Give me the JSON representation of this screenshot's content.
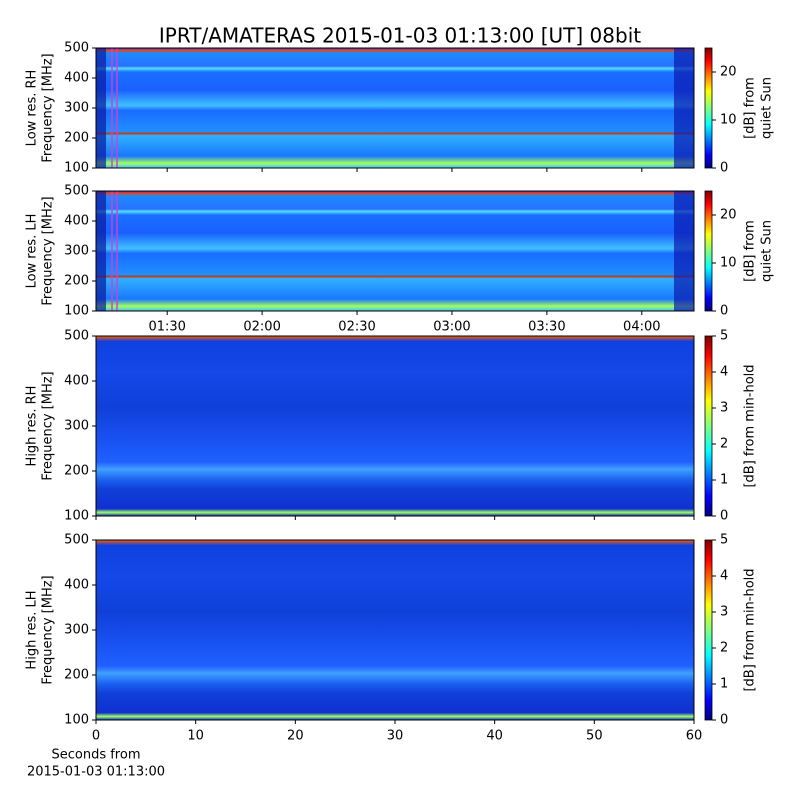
{
  "title": "IPRT/AMATERAS 2015-01-03 01:13:00 [UT]   08bit",
  "chart_data": [
    {
      "type": "heatmap",
      "ylabel": [
        "Low res. RH",
        "Frequency [MHz]"
      ],
      "ylim": [
        100,
        500
      ],
      "yticks": [
        100,
        200,
        300,
        400,
        500
      ],
      "xlim": [
        67.5,
        256.5
      ],
      "xticks": [
        90,
        120,
        150,
        180,
        210,
        240
      ],
      "xticklabels": false,
      "clim": [
        0,
        25
      ],
      "cticks": [
        0,
        10,
        20
      ],
      "clabel": [
        "[dB] from",
        "quiet Sun"
      ],
      "style": "low"
    },
    {
      "type": "heatmap",
      "ylabel": [
        "Low res. LH",
        "Frequency [MHz]"
      ],
      "ylim": [
        100,
        500
      ],
      "yticks": [
        100,
        200,
        300,
        400,
        500
      ],
      "xlim": [
        67.5,
        256.5
      ],
      "xticks": [
        {
          "value": 90,
          "label": "01:30"
        },
        {
          "value": 120,
          "label": "02:00"
        },
        {
          "value": 150,
          "label": "02:30"
        },
        {
          "value": 180,
          "label": "03:00"
        },
        {
          "value": 210,
          "label": "03:30"
        },
        {
          "value": 240,
          "label": "04:00"
        }
      ],
      "xticklabels": true,
      "clim": [
        0,
        25
      ],
      "cticks": [
        0,
        10,
        20
      ],
      "clabel": [
        "[dB] from",
        "quiet Sun"
      ],
      "style": "low"
    },
    {
      "type": "heatmap",
      "ylabel": [
        "High res. RH",
        "Frequency [MHz]"
      ],
      "ylim": [
        100,
        500
      ],
      "yticks": [
        100,
        200,
        300,
        400,
        500
      ],
      "xlim": [
        0,
        60
      ],
      "xticks": [
        0,
        10,
        20,
        30,
        40,
        50,
        60
      ],
      "xticklabels": false,
      "clim": [
        0,
        5
      ],
      "cticks": [
        0,
        1,
        2,
        3,
        4,
        5
      ],
      "clabel": [
        "[dB] from min-hold"
      ],
      "style": "high"
    },
    {
      "type": "heatmap",
      "ylabel": [
        "High res. LH",
        "Frequency [MHz]"
      ],
      "ylim": [
        100,
        500
      ],
      "yticks": [
        100,
        200,
        300,
        400,
        500
      ],
      "xlim": [
        0,
        60
      ],
      "xticks": [
        0,
        10,
        20,
        30,
        40,
        50,
        60
      ],
      "xticklabels": true,
      "xlabel": [
        "Seconds from",
        "2015-01-03 01:13:00"
      ],
      "clim": [
        0,
        5
      ],
      "cticks": [
        0,
        1,
        2,
        3,
        4,
        5
      ],
      "clabel": [
        "[dB] from min-hold"
      ],
      "style": "high"
    }
  ]
}
